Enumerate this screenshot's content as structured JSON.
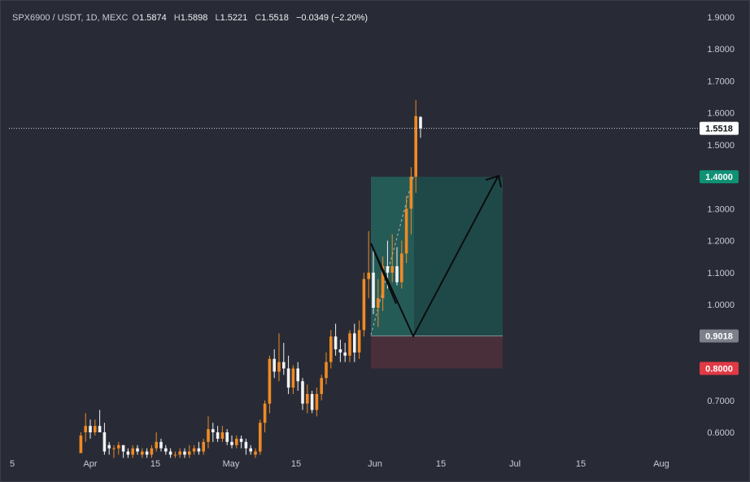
{
  "legend": {
    "symbol": "SPX6900 / USDT, 1D, MEXC",
    "o_label": "O",
    "o_value": "1.5874",
    "h_label": "H",
    "h_value": "1.5898",
    "l_label": "L",
    "l_value": "1.5221",
    "c_label": "C",
    "c_value": "1.5518",
    "change": "−0.0349 (−2.20%)"
  },
  "chart_data": {
    "type": "candlestick",
    "symbol": "SPX6900 / USDT",
    "timeframe": "1D",
    "exchange": "MEXC",
    "y_ticks": [
      "1.9000",
      "1.8000",
      "1.7000",
      "1.6000",
      "1.5000",
      "1.4000",
      "1.3000",
      "1.2000",
      "1.1000",
      "1.0000",
      "0.9000",
      "0.8000",
      "0.7000",
      "0.6000"
    ],
    "ylim": [
      0.535,
      1.9
    ],
    "x_ticks": [
      "5",
      "Apr",
      "15",
      "May",
      "15",
      "Jun",
      "15",
      "Jul",
      "15",
      "Aug"
    ],
    "last_price": "1.5518",
    "position": {
      "target": "1.4000",
      "entry": "0.9018",
      "stop": "0.8000"
    },
    "candles_note": "Daily candles from late March to early June; orange = up, white = down",
    "candles": [
      [
        0.535,
        0.6,
        0.535,
        0.59
      ],
      [
        0.6,
        0.66,
        0.57,
        0.62
      ],
      [
        0.62,
        0.64,
        0.58,
        0.6
      ],
      [
        0.6,
        0.64,
        0.59,
        0.62
      ],
      [
        0.62,
        0.67,
        0.6,
        0.6
      ],
      [
        0.6,
        0.63,
        0.53,
        0.54
      ],
      [
        0.56,
        0.57,
        0.53,
        0.55
      ],
      [
        0.55,
        0.56,
        0.52,
        0.55
      ],
      [
        0.55,
        0.57,
        0.53,
        0.56
      ],
      [
        0.56,
        0.56,
        0.52,
        0.54
      ],
      [
        0.54,
        0.55,
        0.52,
        0.53
      ],
      [
        0.53,
        0.56,
        0.52,
        0.55
      ],
      [
        0.55,
        0.56,
        0.53,
        0.54
      ],
      [
        0.53,
        0.55,
        0.52,
        0.54
      ],
      [
        0.54,
        0.55,
        0.52,
        0.53
      ],
      [
        0.53,
        0.56,
        0.52,
        0.55
      ],
      [
        0.55,
        0.6,
        0.54,
        0.57
      ],
      [
        0.57,
        0.58,
        0.54,
        0.55
      ],
      [
        0.55,
        0.56,
        0.53,
        0.54
      ],
      [
        0.54,
        0.55,
        0.52,
        0.53
      ],
      [
        0.53,
        0.54,
        0.52,
        0.53
      ],
      [
        0.53,
        0.55,
        0.52,
        0.54
      ],
      [
        0.54,
        0.55,
        0.52,
        0.53
      ],
      [
        0.53,
        0.56,
        0.52,
        0.54
      ],
      [
        0.54,
        0.56,
        0.53,
        0.55
      ],
      [
        0.55,
        0.57,
        0.53,
        0.54
      ],
      [
        0.54,
        0.58,
        0.53,
        0.57
      ],
      [
        0.57,
        0.65,
        0.55,
        0.61
      ],
      [
        0.61,
        0.63,
        0.57,
        0.6
      ],
      [
        0.6,
        0.62,
        0.57,
        0.58
      ],
      [
        0.58,
        0.62,
        0.57,
        0.6
      ],
      [
        0.6,
        0.61,
        0.56,
        0.57
      ],
      [
        0.57,
        0.59,
        0.55,
        0.56
      ],
      [
        0.56,
        0.59,
        0.55,
        0.58
      ],
      [
        0.58,
        0.59,
        0.55,
        0.57
      ],
      [
        0.57,
        0.58,
        0.53,
        0.55
      ],
      [
        0.55,
        0.56,
        0.53,
        0.54
      ],
      [
        0.53,
        0.55,
        0.52,
        0.54
      ],
      [
        0.54,
        0.64,
        0.53,
        0.63
      ],
      [
        0.63,
        0.7,
        0.6,
        0.69
      ],
      [
        0.69,
        0.84,
        0.66,
        0.83
      ],
      [
        0.83,
        0.86,
        0.77,
        0.79
      ],
      [
        0.79,
        0.91,
        0.76,
        0.82
      ],
      [
        0.82,
        0.88,
        0.78,
        0.8
      ],
      [
        0.8,
        0.84,
        0.72,
        0.74
      ],
      [
        0.74,
        0.81,
        0.72,
        0.8
      ],
      [
        0.8,
        0.82,
        0.73,
        0.76
      ],
      [
        0.76,
        0.77,
        0.67,
        0.69
      ],
      [
        0.69,
        0.75,
        0.66,
        0.72
      ],
      [
        0.72,
        0.73,
        0.66,
        0.67
      ],
      [
        0.67,
        0.74,
        0.65,
        0.72
      ],
      [
        0.72,
        0.78,
        0.7,
        0.77
      ],
      [
        0.77,
        0.85,
        0.75,
        0.82
      ],
      [
        0.82,
        0.92,
        0.8,
        0.9
      ],
      [
        0.9,
        0.94,
        0.84,
        0.86
      ],
      [
        0.86,
        0.89,
        0.82,
        0.85
      ],
      [
        0.85,
        0.88,
        0.82,
        0.84
      ],
      [
        0.84,
        0.92,
        0.82,
        0.91
      ],
      [
        0.91,
        0.94,
        0.82,
        0.85
      ],
      [
        0.85,
        0.95,
        0.83,
        0.92
      ],
      [
        0.92,
        1.1,
        0.9,
        1.08
      ],
      [
        1.08,
        1.23,
        1.02,
        1.1
      ],
      [
        1.1,
        1.17,
        0.97,
        0.99
      ],
      [
        0.99,
        1.08,
        0.93,
        1.02
      ],
      [
        1.02,
        1.15,
        0.98,
        1.12
      ],
      [
        1.12,
        1.2,
        1.05,
        1.1
      ],
      [
        1.1,
        1.22,
        1.07,
        1.12
      ],
      [
        1.12,
        1.18,
        1.06,
        1.07
      ],
      [
        1.07,
        1.2,
        1.05,
        1.16
      ],
      [
        1.16,
        1.34,
        1.13,
        1.3
      ],
      [
        1.3,
        1.43,
        1.22,
        1.4
      ],
      [
        1.4,
        1.64,
        1.35,
        1.59
      ],
      [
        1.5874,
        1.5898,
        1.5221,
        1.5518
      ]
    ]
  }
}
